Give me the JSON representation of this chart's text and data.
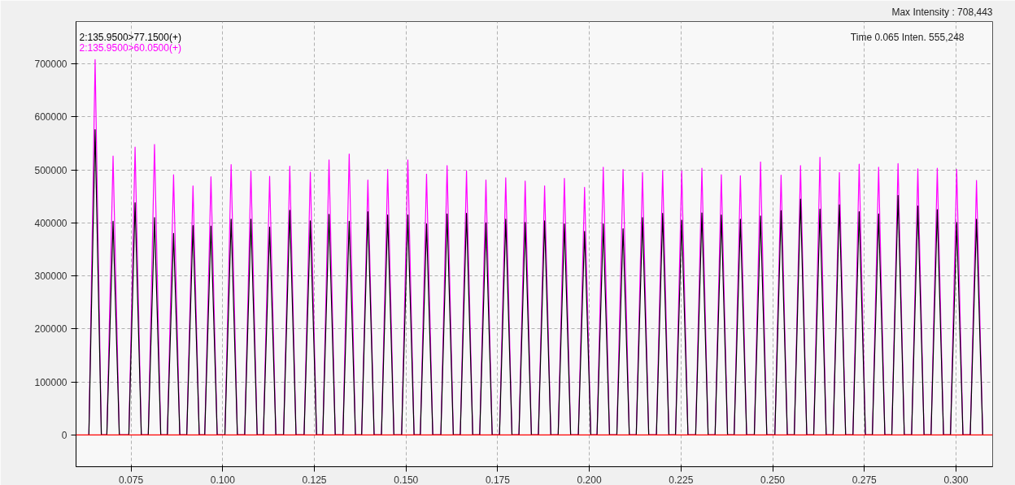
{
  "chart_data": {
    "type": "line",
    "x": [
      0.0635,
      0.0652,
      0.0669,
      0.0684,
      0.0701,
      0.0718,
      0.0744,
      0.0761,
      0.0778,
      0.0797,
      0.0814,
      0.0831,
      0.0849,
      0.0866,
      0.0883,
      0.0902,
      0.0919,
      0.0936,
      0.0951,
      0.0968,
      0.0985,
      0.1006,
      0.1023,
      0.104,
      0.106,
      0.1077,
      0.1094,
      0.1111,
      0.1128,
      0.1145,
      0.1166,
      0.1183,
      0.12,
      0.1222,
      0.1239,
      0.1256,
      0.1273,
      0.129,
      0.1307,
      0.1328,
      0.1345,
      0.1362,
      0.1379,
      0.1396,
      0.1413,
      0.1433,
      0.145,
      0.1467,
      0.1488,
      0.1505,
      0.1522,
      0.1539,
      0.1556,
      0.1573,
      0.1595,
      0.1612,
      0.1629,
      0.1648,
      0.1665,
      0.1682,
      0.1701,
      0.1718,
      0.1735,
      0.1755,
      0.1772,
      0.1789,
      0.1808,
      0.1825,
      0.1842,
      0.1861,
      0.1878,
      0.1895,
      0.1915,
      0.1932,
      0.1949,
      0.197,
      0.1987,
      0.2004,
      0.2021,
      0.2038,
      0.2055,
      0.2075,
      0.2092,
      0.2109,
      0.2128,
      0.2145,
      0.2162,
      0.2183,
      0.22,
      0.2217,
      0.2235,
      0.2252,
      0.2269,
      0.229,
      0.2307,
      0.2324,
      0.2343,
      0.236,
      0.2377,
      0.2395,
      0.2412,
      0.2429,
      0.245,
      0.2467,
      0.2484,
      0.2506,
      0.2523,
      0.254,
      0.2559,
      0.2576,
      0.2593,
      0.2612,
      0.2629,
      0.2646,
      0.2665,
      0.2682,
      0.2699,
      0.2719,
      0.2736,
      0.2753,
      0.2772,
      0.2789,
      0.2806,
      0.2825,
      0.2842,
      0.2859,
      0.2879,
      0.2896,
      0.2913,
      0.2932,
      0.2949,
      0.2966,
      0.2985,
      0.3002,
      0.3019,
      0.3039,
      0.3056,
      0.3073
    ],
    "series": [
      {
        "name": "2:135.9500>60.0500(+)",
        "color": "#ff00ff",
        "values": [
          0,
          708000,
          0,
          0,
          526000,
          0,
          0,
          543000,
          0,
          0,
          548000,
          0,
          0,
          491000,
          0,
          0,
          470000,
          0,
          0,
          487000,
          0,
          0,
          510000,
          0,
          0,
          498000,
          0,
          0,
          488000,
          0,
          0,
          507000,
          0,
          0,
          496000,
          0,
          0,
          519000,
          0,
          0,
          530000,
          0,
          0,
          481000,
          0,
          0,
          501000,
          0,
          0,
          519000,
          0,
          0,
          492000,
          0,
          0,
          508000,
          0,
          0,
          498000,
          0,
          0,
          481000,
          0,
          0,
          485000,
          0,
          0,
          479000,
          0,
          0,
          470000,
          0,
          0,
          484000,
          0,
          0,
          467000,
          0,
          0,
          505000,
          0,
          0,
          501000,
          0,
          0,
          495000,
          0,
          0,
          499000,
          0,
          0,
          498000,
          0,
          0,
          503000,
          0,
          0,
          491000,
          0,
          0,
          489000,
          0,
          0,
          515000,
          0,
          0,
          490000,
          0,
          0,
          508000,
          0,
          0,
          524000,
          0,
          0,
          495000,
          0,
          0,
          511000,
          0,
          0,
          505000,
          0,
          0,
          512000,
          0,
          0,
          502000,
          0,
          0,
          503000,
          0,
          0,
          501000,
          0,
          0,
          480000,
          0
        ]
      },
      {
        "name": "2:135.9500>77.1500(+)",
        "color": "#000000",
        "values": [
          0,
          576000,
          0,
          0,
          403000,
          0,
          0,
          438000,
          0,
          0,
          410000,
          0,
          0,
          380000,
          0,
          0,
          395000,
          0,
          0,
          394000,
          0,
          0,
          407000,
          0,
          0,
          407000,
          0,
          0,
          392000,
          0,
          0,
          424000,
          0,
          0,
          404000,
          0,
          0,
          416000,
          0,
          0,
          403000,
          0,
          0,
          421000,
          0,
          0,
          415000,
          0,
          0,
          415000,
          0,
          0,
          398000,
          0,
          0,
          417000,
          0,
          0,
          418000,
          0,
          0,
          400000,
          0,
          0,
          407000,
          0,
          0,
          401000,
          0,
          0,
          404000,
          0,
          0,
          398000,
          0,
          0,
          384000,
          0,
          0,
          398000,
          0,
          0,
          389000,
          0,
          0,
          410000,
          0,
          0,
          418000,
          0,
          0,
          405000,
          0,
          0,
          419000,
          0,
          0,
          415000,
          0,
          0,
          407000,
          0,
          0,
          413000,
          0,
          0,
          423000,
          0,
          0,
          445000,
          0,
          0,
          426000,
          0,
          0,
          434000,
          0,
          0,
          421000,
          0,
          0,
          417000,
          0,
          0,
          452000,
          0,
          0,
          432000,
          0,
          0,
          425000,
          0,
          0,
          401000,
          0,
          0,
          407000,
          0
        ]
      }
    ],
    "xlim": [
      0.06,
      0.31
    ],
    "ylim": [
      -60000,
      780000
    ],
    "xticks": [
      {
        "value": 0.075,
        "label": "0.075"
      },
      {
        "value": 0.1,
        "label": "0.100"
      },
      {
        "value": 0.125,
        "label": "0.125"
      },
      {
        "value": 0.15,
        "label": "0.150"
      },
      {
        "value": 0.175,
        "label": "0.175"
      },
      {
        "value": 0.2,
        "label": "0.200"
      },
      {
        "value": 0.225,
        "label": "0.225"
      },
      {
        "value": 0.25,
        "label": "0.250"
      },
      {
        "value": 0.275,
        "label": "0.275"
      },
      {
        "value": 0.3,
        "label": "0.300"
      }
    ],
    "yticks": [
      0,
      100000,
      200000,
      300000,
      400000,
      500000,
      600000,
      700000
    ],
    "ref_lines": [
      {
        "axis": "y",
        "value": 0,
        "label": null,
        "color": "#ff0000"
      }
    ],
    "annotations": [
      "Max Intensity : 708,443",
      "Time    0.065    Inten.    555,248"
    ],
    "grid": true,
    "legend": "top left",
    "marker": "none",
    "line_style": "solid"
  }
}
